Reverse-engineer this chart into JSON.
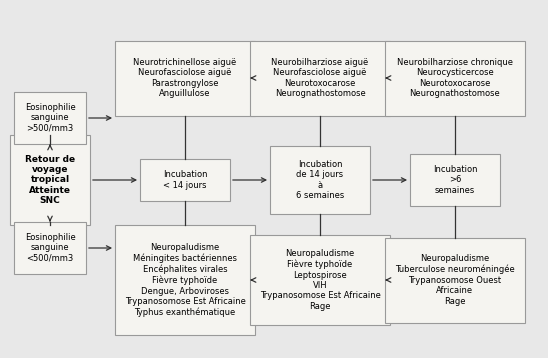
{
  "bg_color": "#e8e8e8",
  "box_bg": "#f5f4f0",
  "box_edge": "#999999",
  "arrow_color": "#333333",
  "fs": 6.0,
  "fs_bold": 6.5,
  "left_box_text": "Retour de\nvoyage\ntropical\nAtteinte\nSNC",
  "top_left_label": "Eosinophilie\nsanguine\n>500/mm3",
  "bottom_left_label": "Eosinophilie\nsanguine\n<500/mm3",
  "incubation_boxes": [
    {
      "text": "Incubation\n< 14 jours"
    },
    {
      "text": "Incubation\nde 14 jours\nà\n6 semaines"
    },
    {
      "text": "Incubation\n>6\nsemaines"
    }
  ],
  "top_boxes": [
    {
      "text": "Neurotrichinellose aiguë\nNeurofasciolose aiguë\nParastrongylose\nAnguillulose"
    },
    {
      "text": "Neurobilharziose aiguë\nNeurofasciolose aiguë\nNeurotoxocarose\nNeurognathostomose"
    },
    {
      "text": "Neurobilharziose chronique\nNeurocysticercose\nNeurotoxocarose\nNeurognathostomose"
    }
  ],
  "bottom_boxes": [
    {
      "text": "Neuropaludisme\nMéningites bactériennes\nEncéphalites virales\nFièvre typhoïde\nDengue, Arboviroses\nTrypanosomose Est Africaine\nTyphus exanthématique"
    },
    {
      "text": "Neuropaludisme\nFièvre typhoïde\nLeptospirose\nVIH\nTrypanosomose Est Africaine\nRage"
    },
    {
      "text": "Neuropaludisme\nTuberculose neuroméningée\nTrypanosomose Ouest\nAfricaine\nRage"
    }
  ]
}
